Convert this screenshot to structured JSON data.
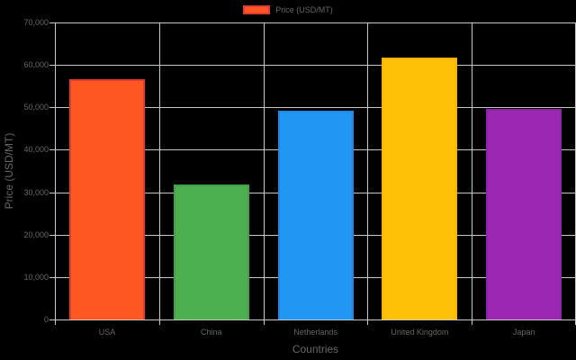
{
  "chart_data": {
    "type": "bar",
    "title": "",
    "categories": [
      "USA",
      "China",
      "Netherlands",
      "United Kingdom",
      "Japan"
    ],
    "series": [
      {
        "name": "Price (USD/MT)",
        "values": [
          56600,
          31800,
          49200,
          61700,
          49700
        ],
        "colors": [
          "#ff5722",
          "#4caf50",
          "#2196f3",
          "#ffc107",
          "#9c27b0"
        ],
        "border_colors": [
          "#e53935",
          "#43a047",
          "#1e88e5",
          "#ffb300",
          "#8e24aa"
        ]
      }
    ],
    "xlabel": "Countries",
    "ylabel": "Price (USD/MT)",
    "ylim": [
      0,
      70000
    ],
    "yticks": [
      "0",
      "10,000",
      "20,000",
      "30,000",
      "40,000",
      "50,000",
      "60,000",
      "70,000"
    ],
    "grid": true,
    "legend_position": "top"
  }
}
